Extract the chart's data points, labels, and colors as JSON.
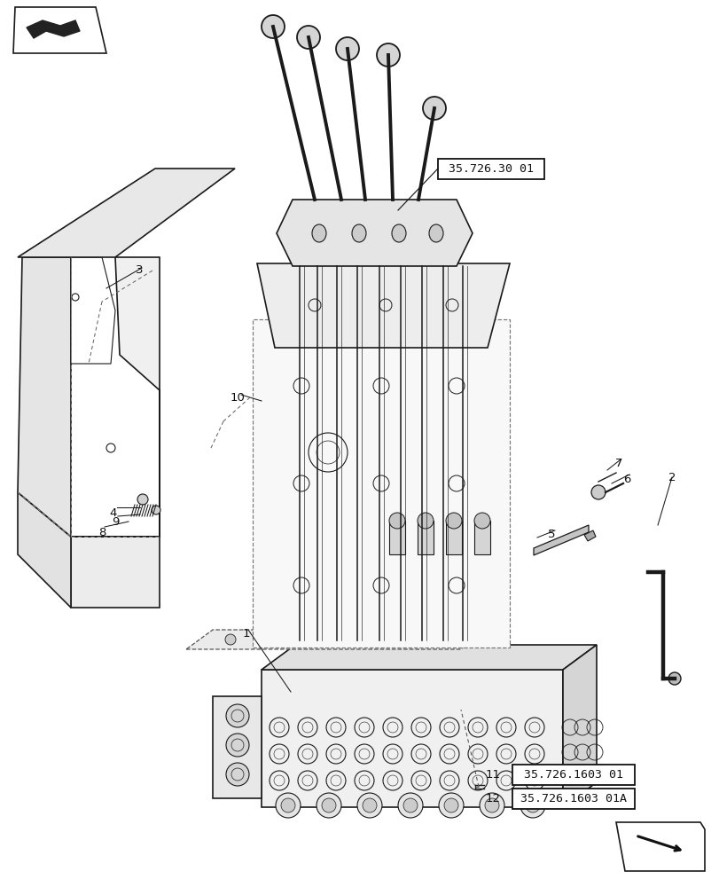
{
  "bg_color": "#ffffff",
  "line_color": "#1a1a1a",
  "fig_width": 8.12,
  "fig_height": 10.0,
  "dpi": 100,
  "ref_box_1": "35.726.30 01",
  "ref_box_2": "35.726.1603 01",
  "ref_box_3": "35.726.1603 01A",
  "label_11": "11",
  "label_12": "12"
}
